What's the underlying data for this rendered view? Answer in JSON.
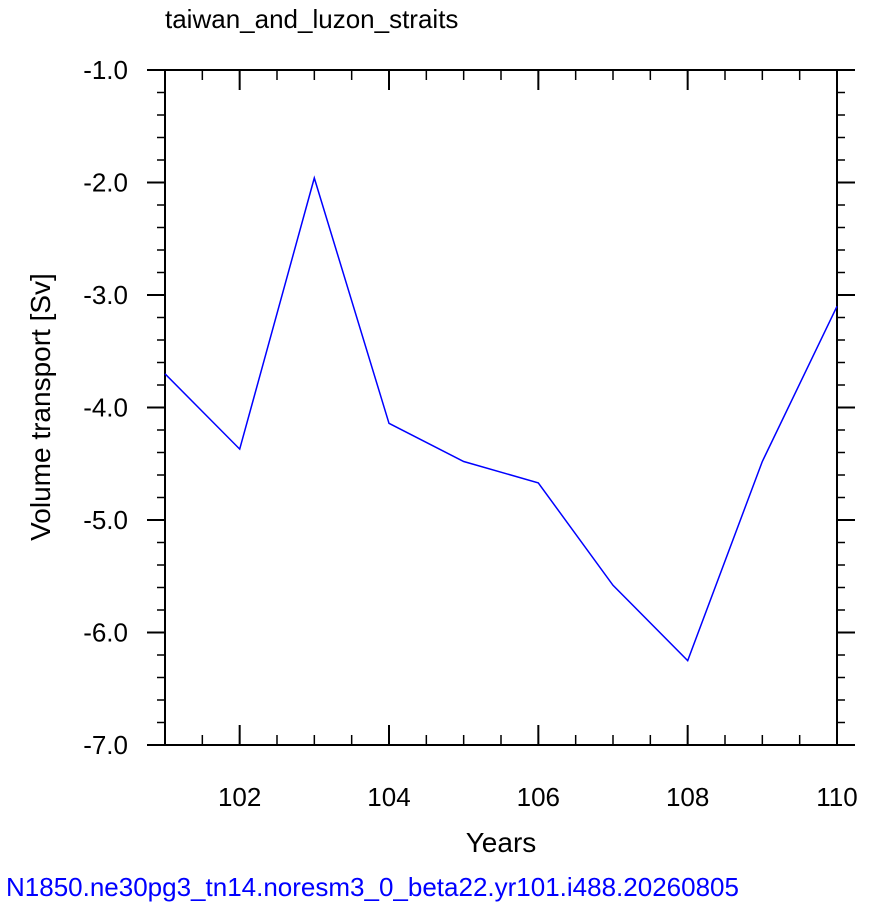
{
  "chart_data": {
    "type": "line",
    "title": "taiwan_and_luzon_straits",
    "xlabel": "Years",
    "ylabel": "Volume transport [Sv]",
    "xlim": [
      101,
      110
    ],
    "ylim": [
      -7.0,
      -1.0
    ],
    "x_ticks": [
      "102",
      "104",
      "106",
      "108",
      "110"
    ],
    "y_ticks": [
      "-1.0",
      "-2.0",
      "-3.0",
      "-4.0",
      "-5.0",
      "-6.0",
      "-7.0"
    ],
    "grid": false,
    "series": [
      {
        "color": "#0000ff",
        "x": [
          101,
          102,
          103,
          104,
          105,
          106,
          107,
          108,
          109,
          110
        ],
        "values": [
          -3.7,
          -4.37,
          -1.96,
          -4.14,
          -4.48,
          -4.67,
          -5.58,
          -6.25,
          -4.48,
          -3.1
        ]
      }
    ]
  },
  "footer": {
    "text": "N1850.ne30pg3_tn14.noresm3_0_beta22.yr101.i488.20260805",
    "color": "#0000ff"
  }
}
